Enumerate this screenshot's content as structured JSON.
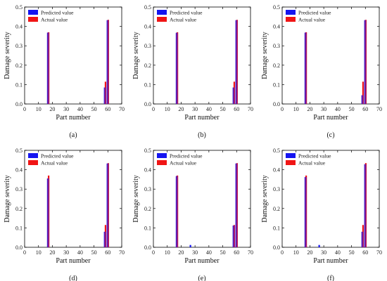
{
  "colors": {
    "predicted": "#1515f0",
    "actual": "#f01515",
    "overlap": "#7a1a9a",
    "axis": "#000000"
  },
  "chart_data": [
    {
      "type": "bar",
      "caption": "(a)",
      "xlabel": "Part number",
      "ylabel": "Damage severity",
      "xlim": [
        0,
        70
      ],
      "ylim": [
        0,
        0.5
      ],
      "xticks": [
        "0",
        "10",
        "20",
        "30",
        "40",
        "50",
        "60",
        "70"
      ],
      "yticks": [
        "0.0",
        "0.1",
        "0.2",
        "0.3",
        "0.4",
        "0.5"
      ],
      "legend": {
        "position": "top-left",
        "entries": [
          "Predicted value",
          "Actual value"
        ]
      },
      "grid": false,
      "series": [
        {
          "name": "Predicted value",
          "x": [
            17,
            58,
            60
          ],
          "values": [
            0.368,
            0.085,
            0.432
          ]
        },
        {
          "name": "Actual value",
          "x": [
            17,
            58,
            60
          ],
          "values": [
            0.37,
            0.115,
            0.434
          ]
        }
      ]
    },
    {
      "type": "bar",
      "caption": "(b)",
      "xlabel": "Part number",
      "ylabel": "Damage severity",
      "xlim": [
        0,
        70
      ],
      "ylim": [
        0,
        0.5
      ],
      "xticks": [
        "0",
        "10",
        "20",
        "30",
        "40",
        "50",
        "60",
        "70"
      ],
      "yticks": [
        "0.0",
        "0.1",
        "0.2",
        "0.3",
        "0.4",
        "0.5"
      ],
      "legend": {
        "position": "top-left",
        "entries": [
          "Predicted value",
          "Actual value"
        ]
      },
      "grid": false,
      "series": [
        {
          "name": "Predicted value",
          "x": [
            17,
            58,
            60
          ],
          "values": [
            0.367,
            0.085,
            0.432
          ]
        },
        {
          "name": "Actual value",
          "x": [
            17,
            58,
            60
          ],
          "values": [
            0.37,
            0.115,
            0.434
          ]
        }
      ]
    },
    {
      "type": "bar",
      "caption": "(c)",
      "xlabel": "Part number",
      "ylabel": "Damage severity",
      "xlim": [
        0,
        70
      ],
      "ylim": [
        0,
        0.5
      ],
      "xticks": [
        "0",
        "10",
        "20",
        "30",
        "40",
        "50",
        "60",
        "70"
      ],
      "yticks": [
        "0.0",
        "0.1",
        "0.2",
        "0.3",
        "0.4",
        "0.5"
      ],
      "legend": {
        "position": "top-left",
        "entries": [
          "Predicted value",
          "Actual value"
        ]
      },
      "grid": false,
      "series": [
        {
          "name": "Predicted value",
          "x": [
            17,
            58,
            60
          ],
          "values": [
            0.368,
            0.045,
            0.432
          ]
        },
        {
          "name": "Actual value",
          "x": [
            17,
            58,
            60
          ],
          "values": [
            0.37,
            0.115,
            0.434
          ]
        }
      ]
    },
    {
      "type": "bar",
      "caption": "(d)",
      "xlabel": "Part number",
      "ylabel": "Damage severity",
      "xlim": [
        0,
        70
      ],
      "ylim": [
        0,
        0.5
      ],
      "xticks": [
        "0",
        "10",
        "20",
        "30",
        "40",
        "50",
        "60",
        "70"
      ],
      "yticks": [
        "0.0",
        "0.1",
        "0.2",
        "0.3",
        "0.4",
        "0.5"
      ],
      "legend": {
        "position": "top-left",
        "entries": [
          "Predicted value",
          "Actual value"
        ]
      },
      "grid": false,
      "series": [
        {
          "name": "Predicted value",
          "x": [
            17,
            58,
            60
          ],
          "values": [
            0.355,
            0.08,
            0.432
          ]
        },
        {
          "name": "Actual value",
          "x": [
            17,
            58,
            60
          ],
          "values": [
            0.37,
            0.115,
            0.434
          ]
        }
      ]
    },
    {
      "type": "bar",
      "caption": "(e)",
      "xlabel": "Part number",
      "ylabel": "Damage severity",
      "xlim": [
        0,
        70
      ],
      "ylim": [
        0,
        0.5
      ],
      "xticks": [
        "0",
        "10",
        "20",
        "30",
        "40",
        "50",
        "60",
        "70"
      ],
      "yticks": [
        "0.0",
        "0.1",
        "0.2",
        "0.3",
        "0.4",
        "0.5"
      ],
      "legend": {
        "position": "top-left",
        "entries": [
          "Predicted value",
          "Actual value"
        ]
      },
      "grid": false,
      "series": [
        {
          "name": "Predicted value",
          "x": [
            17,
            27,
            58,
            60
          ],
          "values": [
            0.367,
            0.012,
            0.112,
            0.432
          ]
        },
        {
          "name": "Actual value",
          "x": [
            17,
            58,
            60
          ],
          "values": [
            0.37,
            0.115,
            0.434
          ]
        }
      ]
    },
    {
      "type": "bar",
      "caption": "(f)",
      "xlabel": "Part number",
      "ylabel": "Damage severity",
      "xlim": [
        0,
        70
      ],
      "ylim": [
        0,
        0.5
      ],
      "xticks": [
        "0",
        "10",
        "20",
        "30",
        "40",
        "50",
        "60",
        "70"
      ],
      "yticks": [
        "0.0",
        "0.1",
        "0.2",
        "0.3",
        "0.4",
        "0.5"
      ],
      "legend": {
        "position": "top-left",
        "entries": [
          "Predicted value",
          "Actual value"
        ]
      },
      "grid": false,
      "series": [
        {
          "name": "Predicted value",
          "x": [
            17,
            27,
            58,
            60
          ],
          "values": [
            0.362,
            0.012,
            0.08,
            0.428
          ]
        },
        {
          "name": "Actual value",
          "x": [
            17,
            58,
            60
          ],
          "values": [
            0.37,
            0.115,
            0.434
          ]
        }
      ]
    }
  ]
}
